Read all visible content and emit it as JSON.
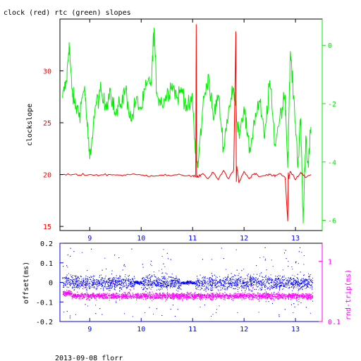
{
  "colors": {
    "clock": "#ff0000",
    "rtc": "#00ee00",
    "offset": "#0000ff",
    "rndtrip": "#ff00ff",
    "axis": "#000000"
  },
  "footer": "2013-09-08 florr",
  "chart_data": [
    {
      "type": "line",
      "title": "clock (red) rtc (green) slopes",
      "xlabel": "",
      "ylabel": "clockslope",
      "ylabel_right": "",
      "xlim": [
        8.42,
        13.52
      ],
      "ylim": [
        14.6,
        35.0
      ],
      "y2lim": [
        -6.35,
        0.9
      ],
      "x_ticks": [
        9,
        10,
        11,
        12,
        13
      ],
      "y_ticks": [
        15,
        20,
        25,
        30
      ],
      "y2_ticks": [
        0,
        -2,
        -4,
        -6
      ],
      "series": [
        {
          "color": "red",
          "axis": "left",
          "x": [
            8.47,
            8.6,
            8.8,
            9.0,
            9.2,
            9.4,
            9.6,
            9.8,
            10.0,
            10.2,
            10.4,
            10.6,
            10.8,
            11.0,
            11.06,
            11.07,
            11.08,
            11.1,
            11.2,
            11.3,
            11.4,
            11.5,
            11.6,
            11.7,
            11.8,
            11.84,
            11.85,
            11.86,
            11.9,
            12.0,
            12.1,
            12.2,
            12.3,
            12.4,
            12.5,
            12.6,
            12.7,
            12.8,
            12.85,
            12.86,
            12.87,
            12.9,
            13.0,
            13.1,
            13.2,
            13.3
          ],
          "y": [
            20.0,
            20.0,
            19.95,
            20.0,
            19.95,
            20.0,
            19.95,
            20.0,
            19.95,
            19.9,
            19.95,
            19.9,
            19.95,
            19.9,
            19.8,
            34.5,
            19.7,
            19.8,
            20.1,
            19.6,
            20.2,
            19.5,
            20.4,
            19.6,
            20.5,
            33.8,
            19.3,
            20.8,
            19.2,
            20.3,
            19.6,
            20.1,
            19.8,
            19.9,
            20.0,
            19.8,
            20.1,
            19.7,
            15.5,
            20.2,
            19.6,
            20.3,
            19.5,
            20.2,
            19.7,
            20.0
          ]
        },
        {
          "color": "green",
          "axis": "right",
          "x": [
            8.47,
            8.55,
            8.6,
            8.65,
            8.7,
            8.8,
            8.9,
            8.95,
            9.0,
            9.1,
            9.2,
            9.3,
            9.4,
            9.5,
            9.6,
            9.7,
            9.8,
            9.9,
            10.0,
            10.1,
            10.2,
            10.25,
            10.3,
            10.4,
            10.5,
            10.6,
            10.7,
            10.8,
            10.9,
            11.0,
            11.05,
            11.1,
            11.2,
            11.3,
            11.4,
            11.5,
            11.6,
            11.7,
            11.8,
            11.9,
            12.0,
            12.1,
            12.2,
            12.3,
            12.4,
            12.5,
            12.6,
            12.7,
            12.8,
            12.85,
            12.9,
            13.0,
            13.05,
            13.1,
            13.15,
            13.2,
            13.25,
            13.3
          ],
          "y": [
            -1.8,
            -1.2,
            0.1,
            -1.5,
            -2.0,
            -2.3,
            -1.4,
            -2.8,
            -3.9,
            -2.2,
            -1.6,
            -2.1,
            -1.5,
            -2.4,
            -2.0,
            -1.5,
            -2.6,
            -1.9,
            -2.2,
            -1.4,
            -1.2,
            0.6,
            -1.6,
            -2.0,
            -1.7,
            -1.3,
            -1.8,
            -1.5,
            -2.2,
            -1.9,
            -3.6,
            -4.2,
            -2.1,
            -1.0,
            -2.5,
            -1.7,
            -3.5,
            -2.2,
            -1.5,
            -3.0,
            -2.1,
            -3.7,
            -2.6,
            -1.9,
            -3.2,
            -1.2,
            -3.4,
            -2.4,
            -1.7,
            -4.2,
            -0.2,
            -2.7,
            -4.1,
            -2.5,
            -6.1,
            -3.1,
            -4.2,
            -2.8
          ]
        }
      ]
    },
    {
      "type": "scatter",
      "title": "",
      "xlabel": "",
      "ylabel": "offset(ms)",
      "ylabel_right": "rnd-trip(ms)",
      "xlim": [
        8.42,
        13.52
      ],
      "ylim": [
        -0.2,
        0.2
      ],
      "y2lim": [
        0.1,
        2.0
      ],
      "y2_scale": "log",
      "x_ticks": [
        9,
        10,
        11,
        12,
        13
      ],
      "y_ticks": [
        0.2,
        0.1,
        0,
        -0.1,
        -0.2
      ],
      "y2_ticks": [
        1,
        0.1
      ],
      "series": [
        {
          "color": "blue",
          "axis": "left",
          "x_range": [
            8.47,
            13.33
          ],
          "center": 0.0,
          "spread": 0.035,
          "outlier_spread": 0.18,
          "quiet_intervals": [
            [
              9.87,
              10.0
            ],
            [
              10.78,
              11.05
            ]
          ],
          "quiet_spread": 0.008
        },
        {
          "color": "magenta",
          "axis": "right",
          "x_range": [
            8.47,
            13.33
          ],
          "center": 0.27,
          "spread": 0.03,
          "start_bump": [
            8.47,
            8.65,
            0.3
          ]
        }
      ]
    }
  ]
}
